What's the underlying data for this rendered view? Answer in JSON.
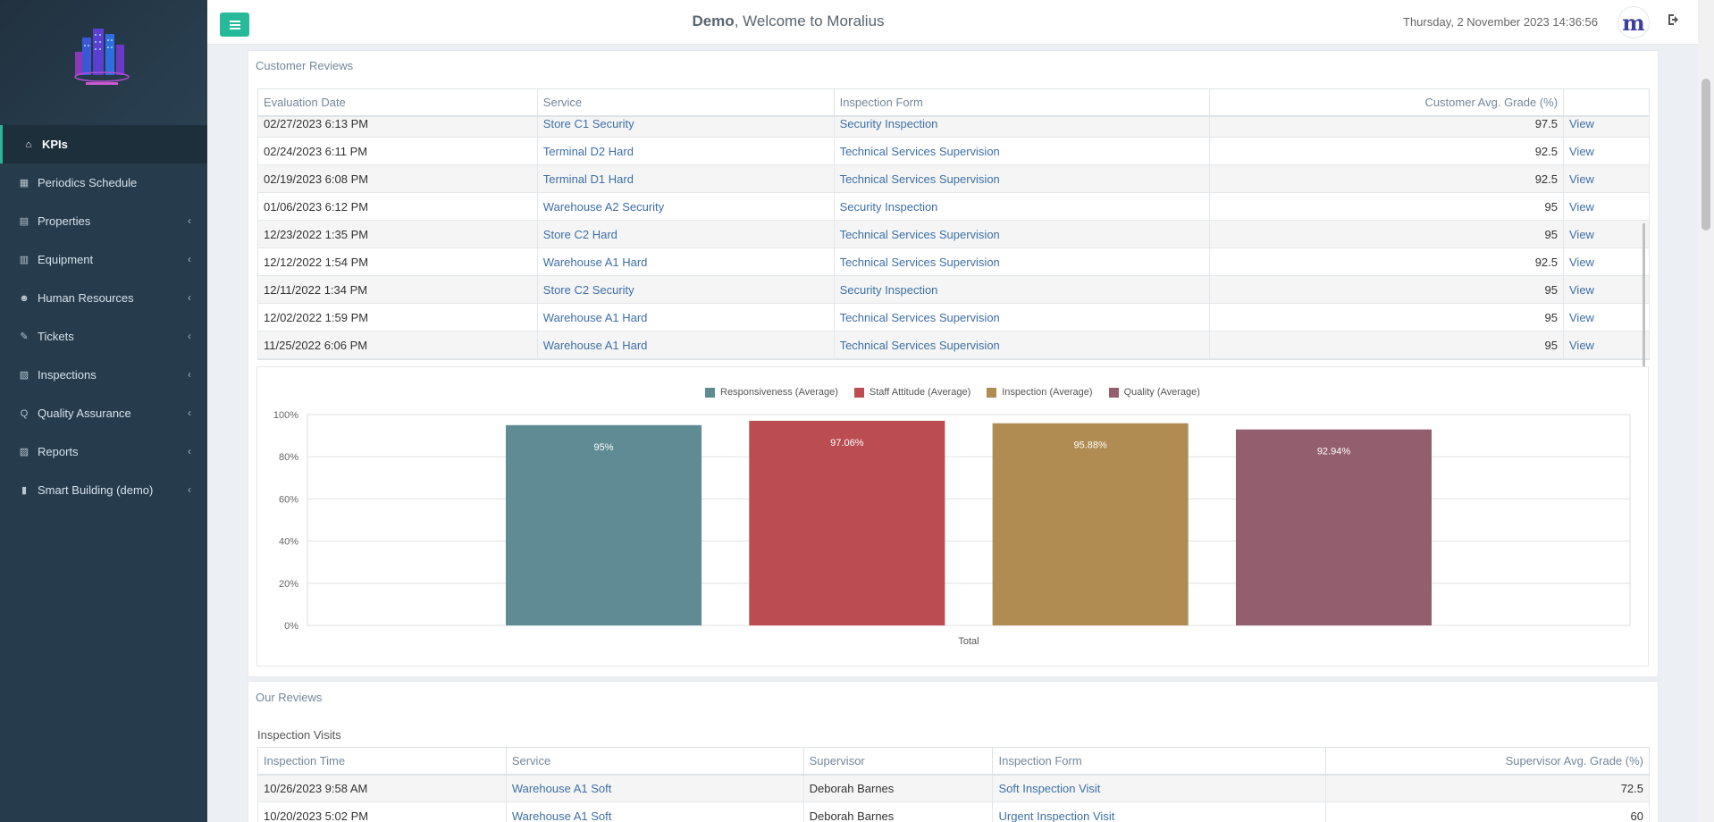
{
  "header": {
    "user": "Demo",
    "welcome_rest": ", Welcome to Moralius",
    "datetime": "Thursday, 2 November 2023 14:36:56",
    "brand_letter": "m"
  },
  "sidebar": {
    "items": [
      {
        "label": "KPIs",
        "icon": "home-icon",
        "glyph": "⌂",
        "active": true,
        "chevron": false
      },
      {
        "label": "Periodics Schedule",
        "icon": "calendar-icon",
        "glyph": "▦",
        "active": false,
        "chevron": false
      },
      {
        "label": "Properties",
        "icon": "building-icon",
        "glyph": "▤",
        "active": false,
        "chevron": true
      },
      {
        "label": "Equipment",
        "icon": "equipment-icon",
        "glyph": "▥",
        "active": false,
        "chevron": true
      },
      {
        "label": "Human Resources",
        "icon": "users-icon",
        "glyph": "☻",
        "active": false,
        "chevron": true
      },
      {
        "label": "Tickets",
        "icon": "ticket-icon",
        "glyph": "✎",
        "active": false,
        "chevron": true
      },
      {
        "label": "Inspections",
        "icon": "map-icon",
        "glyph": "▧",
        "active": false,
        "chevron": true
      },
      {
        "label": "Quality Assurance",
        "icon": "search-icon",
        "glyph": "Q",
        "active": false,
        "chevron": true
      },
      {
        "label": "Reports",
        "icon": "book-icon",
        "glyph": "▨",
        "active": false,
        "chevron": true
      },
      {
        "label": "Smart Building (demo)",
        "icon": "bar-chart-icon",
        "glyph": "▮",
        "active": false,
        "chevron": true
      }
    ],
    "chevron_glyph": "‹"
  },
  "customer_reviews": {
    "title": "Customer Reviews",
    "columns": [
      "Evaluation Date",
      "Service",
      "Inspection Form",
      "Customer Avg. Grade (%)",
      ""
    ],
    "rows": [
      {
        "date": "02/27/2023 6:13 PM",
        "service": "Store C1 Security",
        "form": "Security Inspection",
        "grade": "97.5",
        "action": "View"
      },
      {
        "date": "02/24/2023 6:11 PM",
        "service": "Terminal D2 Hard",
        "form": "Technical Services Supervision",
        "grade": "92.5",
        "action": "View"
      },
      {
        "date": "02/19/2023 6:08 PM",
        "service": "Terminal D1 Hard",
        "form": "Technical Services Supervision",
        "grade": "92.5",
        "action": "View"
      },
      {
        "date": "01/06/2023 6:12 PM",
        "service": "Warehouse A2 Security",
        "form": "Security Inspection",
        "grade": "95",
        "action": "View"
      },
      {
        "date": "12/23/2022 1:35 PM",
        "service": "Store C2 Hard",
        "form": "Technical Services Supervision",
        "grade": "95",
        "action": "View"
      },
      {
        "date": "12/12/2022 1:54 PM",
        "service": "Warehouse A1 Hard",
        "form": "Technical Services Supervision",
        "grade": "92.5",
        "action": "View"
      },
      {
        "date": "12/11/2022 1:34 PM",
        "service": "Store C2 Security",
        "form": "Security Inspection",
        "grade": "95",
        "action": "View"
      },
      {
        "date": "12/02/2022 1:59 PM",
        "service": "Warehouse A1 Hard",
        "form": "Technical Services Supervision",
        "grade": "95",
        "action": "View"
      },
      {
        "date": "11/25/2022 6:06 PM",
        "service": "Warehouse A1 Hard",
        "form": "Technical Services Supervision",
        "grade": "95",
        "action": "View"
      }
    ]
  },
  "chart_data": {
    "type": "bar",
    "categories": [
      "Total"
    ],
    "series": [
      {
        "name": "Responsiveness (Average)",
        "values": [
          95
        ],
        "label": "95%",
        "color": "#5f8b94"
      },
      {
        "name": "Staff Attitude (Average)",
        "values": [
          97.06
        ],
        "label": "97.06%",
        "color": "#bb4c52"
      },
      {
        "name": "Inspection (Average)",
        "values": [
          95.88
        ],
        "label": "95.88%",
        "color": "#b08c52"
      },
      {
        "name": "Quality (Average)",
        "values": [
          92.94
        ],
        "label": "92.94%",
        "color": "#935f6e"
      }
    ],
    "yticks": [
      "0%",
      "20%",
      "40%",
      "60%",
      "80%",
      "100%"
    ],
    "ylim": [
      0,
      100
    ],
    "grid": true,
    "legend": "top-center"
  },
  "our_reviews": {
    "title": "Our Reviews",
    "subtitle": "Inspection Visits",
    "columns": [
      "Inspection Time",
      "Service",
      "Supervisor",
      "Inspection Form",
      "Supervisor Avg. Grade (%)"
    ],
    "rows": [
      {
        "time": "10/26/2023 9:58 AM",
        "service": "Warehouse A1 Soft",
        "supervisor": "Deborah Barnes",
        "form": "Soft Inspection Visit",
        "grade": "72.5"
      },
      {
        "time": "10/20/2023 5:02 PM",
        "service": "Warehouse A1 Soft",
        "supervisor": "Deborah Barnes",
        "form": "Urgent Inspection Visit",
        "grade": "60"
      }
    ]
  }
}
